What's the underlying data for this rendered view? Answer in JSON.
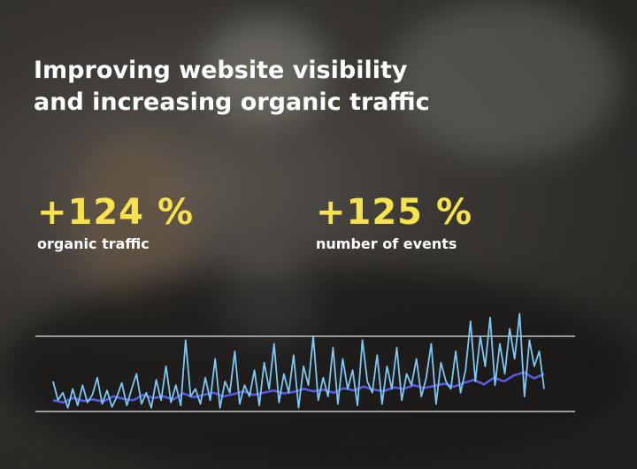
{
  "title_lines": [
    "Improving website visibility",
    "and increasing organic traffic"
  ],
  "stats": [
    {
      "value": "+124 %",
      "label": "organic traffic"
    },
    {
      "value": "+125 %",
      "label": "number of events"
    }
  ],
  "chart_data": {
    "type": "line",
    "ylim": [
      0,
      100
    ],
    "yticks": [
      0,
      100
    ],
    "grid": true,
    "series": [
      {
        "color": "#7cc8f2",
        "values": [
          40,
          15,
          25,
          5,
          30,
          8,
          35,
          12,
          22,
          45,
          10,
          28,
          6,
          20,
          38,
          8,
          30,
          50,
          10,
          25,
          5,
          42,
          15,
          60,
          12,
          35,
          8,
          95,
          20,
          30,
          10,
          45,
          15,
          70,
          5,
          40,
          25,
          80,
          10,
          35,
          20,
          55,
          8,
          65,
          30,
          90,
          12,
          50,
          25,
          75,
          5,
          60,
          35,
          100,
          15,
          45,
          20,
          85,
          10,
          70,
          30,
          55,
          8,
          95,
          40,
          25,
          75,
          10,
          60,
          30,
          85,
          15,
          50,
          35,
          70,
          20,
          45,
          90,
          10,
          65,
          40,
          30,
          80,
          25,
          55,
          120,
          40,
          100,
          60,
          125,
          35,
          90,
          50,
          110,
          70,
          130,
          20,
          95,
          60,
          80,
          30
        ]
      },
      {
        "color": "#5b5be6",
        "values": [
          15,
          12,
          18,
          14,
          16,
          13,
          20,
          17,
          15,
          22,
          18,
          20,
          16,
          24,
          19,
          22,
          25,
          20,
          23,
          27,
          22,
          25,
          28,
          24,
          26,
          30,
          27,
          29,
          25,
          31,
          28,
          33,
          29,
          27,
          32,
          30,
          35,
          31,
          34,
          37,
          33,
          38,
          42,
          36,
          45,
          40,
          48,
          52,
          44,
          50
        ]
      }
    ]
  }
}
